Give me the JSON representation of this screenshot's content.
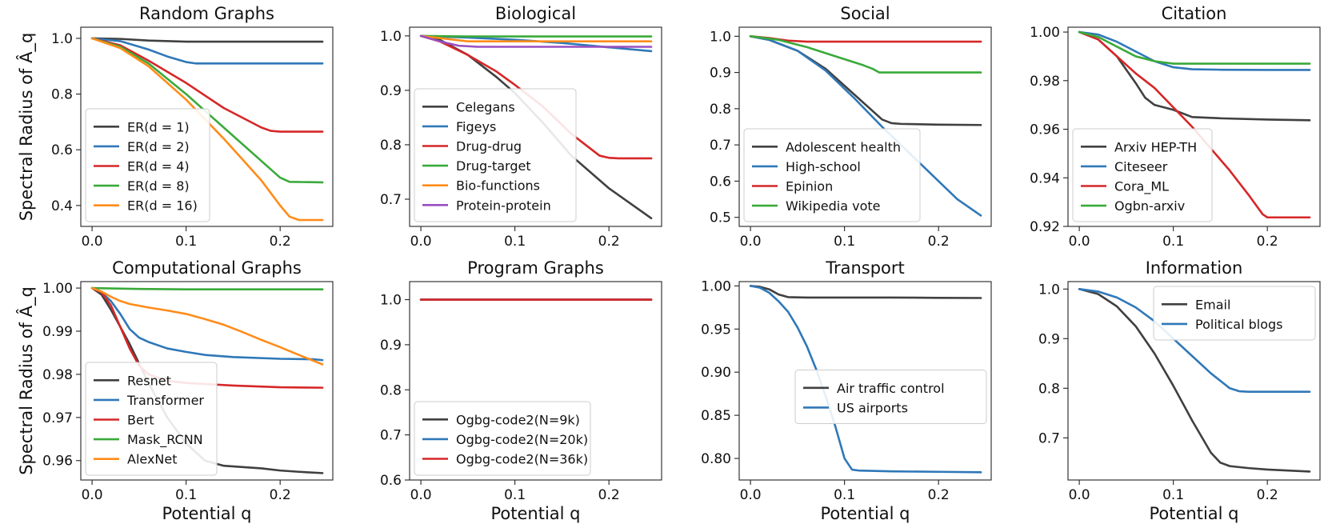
{
  "chart_data": [
    {
      "type": "line",
      "title": "Random Graphs",
      "xlabel": "",
      "ylabel": "Spectral Radius of Â_q",
      "xlim": [
        -0.012,
        0.256
      ],
      "ylim": [
        0.325,
        1.04
      ],
      "xticks": [
        0.0,
        0.1,
        0.2
      ],
      "xtick_labels": [
        "0.0",
        "0.1",
        "0.2"
      ],
      "yticks": [
        0.4,
        0.6,
        0.8,
        1.0
      ],
      "ytick_labels": [
        "0.4",
        "0.6",
        "0.8",
        "1.0"
      ],
      "legend_position": "lower-left",
      "series": [
        {
          "name": "ER(d = 1)",
          "color": "#404040",
          "x": [
            0,
            0.03,
            0.06,
            0.1,
            0.15,
            0.2,
            0.245
          ],
          "y": [
            1.0,
            0.998,
            0.992,
            0.988,
            0.988,
            0.988,
            0.988
          ]
        },
        {
          "name": "ER(d = 2)",
          "color": "#2f78b8",
          "x": [
            0,
            0.03,
            0.06,
            0.08,
            0.1,
            0.11,
            0.15,
            0.2,
            0.245
          ],
          "y": [
            1.0,
            0.99,
            0.96,
            0.935,
            0.915,
            0.91,
            0.91,
            0.91,
            0.91
          ]
        },
        {
          "name": "ER(d = 4)",
          "color": "#d62728",
          "x": [
            0,
            0.03,
            0.06,
            0.1,
            0.14,
            0.18,
            0.19,
            0.2,
            0.245
          ],
          "y": [
            1.0,
            0.975,
            0.92,
            0.84,
            0.75,
            0.68,
            0.668,
            0.665,
            0.665
          ]
        },
        {
          "name": "ER(d = 8)",
          "color": "#3aaa3a",
          "x": [
            0,
            0.03,
            0.06,
            0.1,
            0.14,
            0.18,
            0.2,
            0.21,
            0.245
          ],
          "y": [
            1.0,
            0.97,
            0.91,
            0.8,
            0.68,
            0.56,
            0.5,
            0.485,
            0.483
          ]
        },
        {
          "name": "ER(d = 16)",
          "color": "#ff8c1a",
          "x": [
            0,
            0.03,
            0.06,
            0.1,
            0.14,
            0.18,
            0.2,
            0.21,
            0.22,
            0.245
          ],
          "y": [
            1.0,
            0.965,
            0.9,
            0.78,
            0.64,
            0.49,
            0.4,
            0.36,
            0.348,
            0.348
          ]
        }
      ]
    },
    {
      "type": "line",
      "title": "Biological",
      "xlabel": "",
      "ylabel": "",
      "xlim": [
        -0.012,
        0.256
      ],
      "ylim": [
        0.65,
        1.016
      ],
      "xticks": [
        0.0,
        0.1,
        0.2
      ],
      "xtick_labels": [
        "0.0",
        "0.1",
        "0.2"
      ],
      "yticks": [
        0.7,
        0.8,
        0.9,
        1.0
      ],
      "ytick_labels": [
        "0.7",
        "0.8",
        "0.9",
        "1.0"
      ],
      "legend_position": "lower-left",
      "series": [
        {
          "name": "Celegans",
          "color": "#404040",
          "x": [
            0,
            0.02,
            0.05,
            0.08,
            0.1,
            0.13,
            0.16,
            0.2,
            0.245
          ],
          "y": [
            1.0,
            0.993,
            0.965,
            0.925,
            0.895,
            0.84,
            0.78,
            0.72,
            0.665
          ]
        },
        {
          "name": "Figeys",
          "color": "#2f78b8",
          "x": [
            0,
            0.05,
            0.1,
            0.15,
            0.2,
            0.245
          ],
          "y": [
            1.0,
            0.997,
            0.993,
            0.987,
            0.979,
            0.972
          ]
        },
        {
          "name": "Drug-drug",
          "color": "#d62728",
          "x": [
            0,
            0.02,
            0.05,
            0.08,
            0.1,
            0.13,
            0.16,
            0.19,
            0.2,
            0.21,
            0.245
          ],
          "y": [
            1.0,
            0.99,
            0.965,
            0.935,
            0.91,
            0.87,
            0.82,
            0.78,
            0.776,
            0.775,
            0.775
          ]
        },
        {
          "name": "Drug-target",
          "color": "#3aaa3a",
          "x": [
            0,
            0.05,
            0.1,
            0.15,
            0.2,
            0.245
          ],
          "y": [
            1.0,
            0.999,
            0.999,
            0.999,
            0.999,
            0.999
          ]
        },
        {
          "name": "Bio-functions",
          "color": "#ff8c1a",
          "x": [
            0,
            0.05,
            0.1,
            0.15,
            0.2,
            0.245
          ],
          "y": [
            1.0,
            0.99,
            0.99,
            0.99,
            0.99,
            0.99
          ]
        },
        {
          "name": "Protein-protein",
          "color": "#9a4fbf",
          "x": [
            0,
            0.02,
            0.04,
            0.06,
            0.1,
            0.15,
            0.2,
            0.245
          ],
          "y": [
            1.0,
            0.99,
            0.982,
            0.98,
            0.98,
            0.98,
            0.98,
            0.98
          ]
        }
      ]
    },
    {
      "type": "line",
      "title": "Social",
      "xlabel": "",
      "ylabel": "",
      "xlim": [
        -0.012,
        0.256
      ],
      "ylim": [
        0.475,
        1.025
      ],
      "xticks": [
        0.0,
        0.1,
        0.2
      ],
      "xtick_labels": [
        "0.0",
        "0.1",
        "0.2"
      ],
      "yticks": [
        0.5,
        0.6,
        0.7,
        0.8,
        0.9,
        1.0
      ],
      "ytick_labels": [
        "0.5",
        "0.6",
        "0.7",
        "0.8",
        "0.9",
        "1.0"
      ],
      "legend_position": "lower-left",
      "series": [
        {
          "name": "Adolescent health",
          "color": "#404040",
          "x": [
            0,
            0.02,
            0.05,
            0.08,
            0.11,
            0.14,
            0.15,
            0.16,
            0.2,
            0.245
          ],
          "y": [
            1.0,
            0.99,
            0.96,
            0.91,
            0.84,
            0.77,
            0.76,
            0.758,
            0.756,
            0.755
          ]
        },
        {
          "name": "High-school",
          "color": "#2f78b8",
          "x": [
            0,
            0.02,
            0.05,
            0.08,
            0.11,
            0.14,
            0.17,
            0.2,
            0.22,
            0.245
          ],
          "y": [
            1.0,
            0.99,
            0.96,
            0.905,
            0.83,
            0.75,
            0.675,
            0.6,
            0.55,
            0.505
          ]
        },
        {
          "name": "Epinion",
          "color": "#d62728",
          "x": [
            0,
            0.02,
            0.04,
            0.06,
            0.1,
            0.15,
            0.2,
            0.245
          ],
          "y": [
            1.0,
            0.995,
            0.988,
            0.985,
            0.985,
            0.985,
            0.985,
            0.985
          ]
        },
        {
          "name": "Wikipedia vote",
          "color": "#3aaa3a",
          "x": [
            0,
            0.03,
            0.06,
            0.09,
            0.12,
            0.13,
            0.137,
            0.15,
            0.2,
            0.245
          ],
          "y": [
            1.0,
            0.99,
            0.97,
            0.945,
            0.92,
            0.91,
            0.9,
            0.9,
            0.9,
            0.9
          ]
        }
      ]
    },
    {
      "type": "line",
      "title": "Citation",
      "xlabel": "",
      "ylabel": "",
      "xlim": [
        -0.012,
        0.256
      ],
      "ylim": [
        0.92,
        1.002
      ],
      "xticks": [
        0.0,
        0.1,
        0.2
      ],
      "xtick_labels": [
        "0.0",
        "0.1",
        "0.2"
      ],
      "yticks": [
        0.92,
        0.94,
        0.96,
        0.98,
        1.0
      ],
      "ytick_labels": [
        "0.92",
        "0.94",
        "0.96",
        "0.98",
        "1.00"
      ],
      "legend_position": "lower-left",
      "series": [
        {
          "name": "Arxiv HEP-TH",
          "color": "#404040",
          "x": [
            0,
            0.02,
            0.04,
            0.06,
            0.07,
            0.08,
            0.1,
            0.12,
            0.15,
            0.2,
            0.245
          ],
          "y": [
            1.0,
            0.997,
            0.99,
            0.979,
            0.973,
            0.97,
            0.968,
            0.965,
            0.9645,
            0.964,
            0.9637
          ]
        },
        {
          "name": "Citeseer",
          "color": "#2f78b8",
          "x": [
            0,
            0.02,
            0.04,
            0.06,
            0.08,
            0.1,
            0.12,
            0.15,
            0.2,
            0.245
          ],
          "y": [
            1.0,
            0.999,
            0.996,
            0.992,
            0.988,
            0.9855,
            0.9847,
            0.9845,
            0.9844,
            0.9844
          ]
        },
        {
          "name": "Cora_ML",
          "color": "#d62728",
          "x": [
            0,
            0.02,
            0.04,
            0.06,
            0.08,
            0.1,
            0.12,
            0.14,
            0.16,
            0.18,
            0.195,
            0.2,
            0.245
          ],
          "y": [
            1.0,
            0.997,
            0.99,
            0.983,
            0.977,
            0.969,
            0.961,
            0.952,
            0.943,
            0.933,
            0.925,
            0.9237,
            0.9237
          ]
        },
        {
          "name": "Ogbn-arxiv",
          "color": "#3aaa3a",
          "x": [
            0,
            0.02,
            0.04,
            0.06,
            0.08,
            0.1,
            0.15,
            0.2,
            0.245
          ],
          "y": [
            1.0,
            0.998,
            0.994,
            0.99,
            0.988,
            0.987,
            0.987,
            0.987,
            0.987
          ]
        }
      ]
    },
    {
      "type": "line",
      "title": "Computational Graphs",
      "xlabel": "Potential q",
      "ylabel": "Spectral Radius of Â_q",
      "xlim": [
        -0.012,
        0.256
      ],
      "ylim": [
        0.9555,
        1.0015
      ],
      "xticks": [
        0.0,
        0.1,
        0.2
      ],
      "xtick_labels": [
        "0.0",
        "0.1",
        "0.2"
      ],
      "yticks": [
        0.96,
        0.97,
        0.98,
        0.99,
        1.0
      ],
      "ytick_labels": [
        "0.96",
        "0.97",
        "0.98",
        "0.99",
        "1.00"
      ],
      "legend_position": "lower-left",
      "series": [
        {
          "name": "Resnet",
          "color": "#404040",
          "x": [
            0,
            0.01,
            0.02,
            0.04,
            0.06,
            0.08,
            0.1,
            0.12,
            0.14,
            0.18,
            0.2,
            0.22,
            0.245
          ],
          "y": [
            1.0,
            0.9985,
            0.995,
            0.987,
            0.978,
            0.97,
            0.964,
            0.96,
            0.9588,
            0.9582,
            0.9577,
            0.9574,
            0.9571
          ]
        },
        {
          "name": "Transformer",
          "color": "#2f78b8",
          "x": [
            0,
            0.01,
            0.02,
            0.03,
            0.04,
            0.05,
            0.06,
            0.08,
            0.1,
            0.12,
            0.15,
            0.2,
            0.235,
            0.245
          ],
          "y": [
            1.0,
            0.999,
            0.997,
            0.994,
            0.9905,
            0.9885,
            0.9875,
            0.986,
            0.9852,
            0.9845,
            0.984,
            0.9836,
            0.9835,
            0.9833
          ]
        },
        {
          "name": "Bert",
          "color": "#d62728",
          "x": [
            0,
            0.01,
            0.02,
            0.03,
            0.04,
            0.05,
            0.06,
            0.08,
            0.1,
            0.15,
            0.2,
            0.245
          ],
          "y": [
            1.0,
            0.999,
            0.996,
            0.991,
            0.986,
            0.982,
            0.98,
            0.9785,
            0.978,
            0.9774,
            0.977,
            0.9769
          ]
        },
        {
          "name": "Mask_RCNN",
          "color": "#3aaa3a",
          "x": [
            0,
            0.05,
            0.1,
            0.15,
            0.2,
            0.245
          ],
          "y": [
            1.0,
            0.9998,
            0.9997,
            0.9997,
            0.9997,
            0.9997
          ]
        },
        {
          "name": "AlexNet",
          "color": "#ff8c1a",
          "x": [
            0,
            0.01,
            0.02,
            0.03,
            0.04,
            0.06,
            0.08,
            0.1,
            0.12,
            0.14,
            0.16,
            0.18,
            0.2,
            0.22,
            0.245
          ],
          "y": [
            1.0,
            0.9992,
            0.998,
            0.997,
            0.9963,
            0.9955,
            0.9948,
            0.994,
            0.9928,
            0.9915,
            0.9898,
            0.988,
            0.9863,
            0.9845,
            0.9823
          ]
        }
      ]
    },
    {
      "type": "line",
      "title": "Program Graphs",
      "xlabel": "Potential q",
      "ylabel": "",
      "xlim": [
        -0.012,
        0.256
      ],
      "ylim": [
        0.6,
        1.04
      ],
      "xticks": [
        0.0,
        0.1,
        0.2
      ],
      "xtick_labels": [
        "0.0",
        "0.1",
        "0.2"
      ],
      "yticks": [
        0.6,
        0.7,
        0.8,
        0.9,
        1.0
      ],
      "ytick_labels": [
        "0.6",
        "0.7",
        "0.8",
        "0.9",
        "1.0"
      ],
      "legend_position": "lower-left",
      "series": [
        {
          "name": "Ogbg-code2(N=9k)",
          "color": "#404040",
          "x": [
            0,
            0.245
          ],
          "y": [
            1.0,
            1.0
          ]
        },
        {
          "name": "Ogbg-code2(N=20k)",
          "color": "#2f78b8",
          "x": [
            0,
            0.245
          ],
          "y": [
            1.0,
            1.0
          ]
        },
        {
          "name": "Ogbg-code2(N=36k)",
          "color": "#d62728",
          "x": [
            0,
            0.245
          ],
          "y": [
            1.0,
            1.0
          ]
        }
      ]
    },
    {
      "type": "line",
      "title": "Transport",
      "xlabel": "Potential q",
      "ylabel": "",
      "xlim": [
        -0.012,
        0.256
      ],
      "ylim": [
        0.775,
        1.005
      ],
      "xticks": [
        0.0,
        0.1,
        0.2
      ],
      "xtick_labels": [
        "0.0",
        "0.1",
        "0.2"
      ],
      "yticks": [
        0.8,
        0.85,
        0.9,
        0.95,
        1.0
      ],
      "ytick_labels": [
        "0.80",
        "0.85",
        "0.90",
        "0.95",
        "1.00"
      ],
      "legend_position": "center-right",
      "series": [
        {
          "name": "Air traffic control",
          "color": "#404040",
          "x": [
            0,
            0.01,
            0.02,
            0.03,
            0.04,
            0.06,
            0.1,
            0.15,
            0.2,
            0.245
          ],
          "y": [
            1.0,
            0.999,
            0.996,
            0.99,
            0.987,
            0.9865,
            0.9865,
            0.9865,
            0.9862,
            0.986
          ]
        },
        {
          "name": "US airports",
          "color": "#2f78b8",
          "x": [
            0,
            0.01,
            0.02,
            0.03,
            0.04,
            0.05,
            0.06,
            0.07,
            0.08,
            0.09,
            0.1,
            0.108,
            0.115,
            0.15,
            0.2,
            0.245
          ],
          "y": [
            1.0,
            0.998,
            0.992,
            0.982,
            0.97,
            0.952,
            0.93,
            0.903,
            0.872,
            0.838,
            0.8,
            0.787,
            0.786,
            0.785,
            0.7845,
            0.784
          ]
        }
      ]
    },
    {
      "type": "line",
      "title": "Information",
      "xlabel": "Potential q",
      "ylabel": "",
      "xlim": [
        -0.012,
        0.256
      ],
      "ylim": [
        0.615,
        1.015
      ],
      "xticks": [
        0.0,
        0.1,
        0.2
      ],
      "xtick_labels": [
        "0.0",
        "0.1",
        "0.2"
      ],
      "yticks": [
        0.7,
        0.8,
        0.9,
        1.0
      ],
      "ytick_labels": [
        "0.7",
        "0.8",
        "0.9",
        "1.0"
      ],
      "legend_position": "upper-right",
      "series": [
        {
          "name": "Email",
          "color": "#404040",
          "x": [
            0,
            0.02,
            0.04,
            0.06,
            0.08,
            0.1,
            0.12,
            0.14,
            0.15,
            0.16,
            0.18,
            0.2,
            0.245
          ],
          "y": [
            1.0,
            0.99,
            0.965,
            0.925,
            0.87,
            0.805,
            0.735,
            0.67,
            0.65,
            0.643,
            0.639,
            0.636,
            0.632
          ]
        },
        {
          "name": "Political blogs",
          "color": "#2f78b8",
          "x": [
            0,
            0.02,
            0.04,
            0.06,
            0.08,
            0.1,
            0.12,
            0.14,
            0.16,
            0.17,
            0.18,
            0.2,
            0.245
          ],
          "y": [
            1.0,
            0.995,
            0.983,
            0.963,
            0.935,
            0.9,
            0.865,
            0.83,
            0.8,
            0.794,
            0.793,
            0.793,
            0.793
          ]
        }
      ]
    }
  ]
}
